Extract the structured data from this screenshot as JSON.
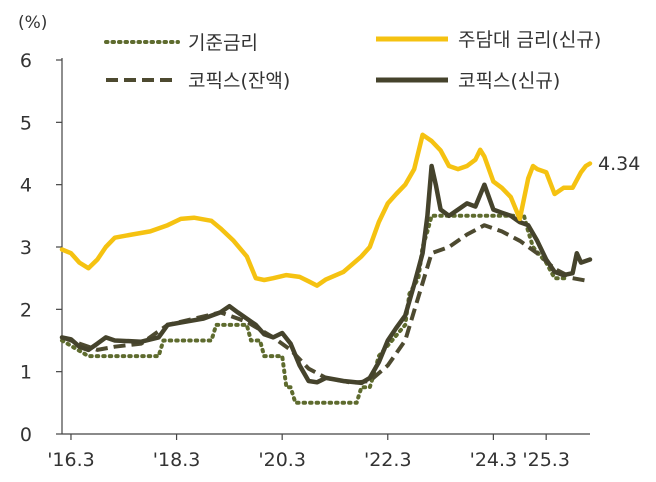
{
  "chart_data": {
    "type": "line",
    "y_unit": "(%)",
    "ylim": [
      0,
      6
    ],
    "y_ticks": [
      "0",
      "1",
      "2",
      "3",
      "4",
      "5",
      "6"
    ],
    "x_ticks": [
      {
        "label": "'16.3",
        "t": 2016.17
      },
      {
        "label": "'18.3",
        "t": 2018.17
      },
      {
        "label": "'20.3",
        "t": 2020.17
      },
      {
        "label": "'22.3",
        "t": 2022.17
      },
      {
        "label": "'24.3",
        "t": 2024.17
      },
      {
        "label": "'25.3",
        "t": 2025.17
      }
    ],
    "xlim": [
      2016.0,
      2025.67
    ],
    "end_label": "4.34",
    "grid": false,
    "legend": "top",
    "colors": {
      "base": "#5e6b2e",
      "mortgage": "#f5c211",
      "cofix_bal": "#4d4a30",
      "cofix_new": "#45432c"
    },
    "series": [
      {
        "name": "기준금리",
        "key": "base",
        "style": "dotted",
        "points": [
          [
            2016.0,
            1.5
          ],
          [
            2016.5,
            1.25
          ],
          [
            2017.83,
            1.25
          ],
          [
            2017.92,
            1.5
          ],
          [
            2018.83,
            1.5
          ],
          [
            2018.92,
            1.75
          ],
          [
            2019.5,
            1.75
          ],
          [
            2019.58,
            1.5
          ],
          [
            2019.75,
            1.5
          ],
          [
            2019.83,
            1.25
          ],
          [
            2020.17,
            1.25
          ],
          [
            2020.25,
            0.75
          ],
          [
            2020.33,
            0.75
          ],
          [
            2020.42,
            0.5
          ],
          [
            2021.58,
            0.5
          ],
          [
            2021.67,
            0.75
          ],
          [
            2021.83,
            0.75
          ],
          [
            2021.92,
            1.0
          ],
          [
            2022.0,
            1.25
          ],
          [
            2022.25,
            1.5
          ],
          [
            2022.5,
            1.75
          ],
          [
            2022.58,
            2.25
          ],
          [
            2022.75,
            2.5
          ],
          [
            2022.83,
            3.0
          ],
          [
            2022.92,
            3.25
          ],
          [
            2023.0,
            3.5
          ],
          [
            2024.75,
            3.5
          ],
          [
            2024.83,
            3.25
          ],
          [
            2024.92,
            3.0
          ],
          [
            2025.17,
            2.75
          ],
          [
            2025.33,
            2.5
          ],
          [
            2025.58,
            2.5
          ]
        ]
      },
      {
        "name": "주담대 금리(신규)",
        "key": "mortgage",
        "style": "solid",
        "points": [
          [
            2016.0,
            2.96
          ],
          [
            2016.17,
            2.9
          ],
          [
            2016.33,
            2.75
          ],
          [
            2016.5,
            2.66
          ],
          [
            2016.67,
            2.8
          ],
          [
            2016.83,
            3.0
          ],
          [
            2017.0,
            3.15
          ],
          [
            2017.33,
            3.2
          ],
          [
            2017.67,
            3.25
          ],
          [
            2018.0,
            3.35
          ],
          [
            2018.25,
            3.45
          ],
          [
            2018.5,
            3.47
          ],
          [
            2018.83,
            3.42
          ],
          [
            2019.0,
            3.3
          ],
          [
            2019.25,
            3.1
          ],
          [
            2019.5,
            2.85
          ],
          [
            2019.67,
            2.5
          ],
          [
            2019.83,
            2.47
          ],
          [
            2020.0,
            2.5
          ],
          [
            2020.25,
            2.55
          ],
          [
            2020.5,
            2.52
          ],
          [
            2020.67,
            2.45
          ],
          [
            2020.83,
            2.38
          ],
          [
            2021.0,
            2.48
          ],
          [
            2021.33,
            2.6
          ],
          [
            2021.67,
            2.85
          ],
          [
            2021.83,
            3.0
          ],
          [
            2022.0,
            3.4
          ],
          [
            2022.17,
            3.7
          ],
          [
            2022.33,
            3.85
          ],
          [
            2022.5,
            4.0
          ],
          [
            2022.67,
            4.25
          ],
          [
            2022.83,
            4.8
          ],
          [
            2023.0,
            4.7
          ],
          [
            2023.17,
            4.55
          ],
          [
            2023.33,
            4.3
          ],
          [
            2023.5,
            4.25
          ],
          [
            2023.67,
            4.3
          ],
          [
            2023.83,
            4.4
          ],
          [
            2023.92,
            4.56
          ],
          [
            2024.0,
            4.45
          ],
          [
            2024.17,
            4.05
          ],
          [
            2024.33,
            3.95
          ],
          [
            2024.5,
            3.8
          ],
          [
            2024.67,
            3.45
          ],
          [
            2024.83,
            4.1
          ],
          [
            2024.92,
            4.3
          ],
          [
            2025.0,
            4.25
          ],
          [
            2025.17,
            4.2
          ],
          [
            2025.33,
            3.85
          ],
          [
            2025.5,
            3.95
          ],
          [
            2025.67,
            3.95
          ],
          [
            2025.83,
            4.2
          ],
          [
            2025.92,
            4.3
          ],
          [
            2026.0,
            4.34
          ]
        ]
      },
      {
        "name": "코픽스(잔액)",
        "key": "cofix_bal",
        "style": "dashed",
        "points": [
          [
            2016.0,
            1.55
          ],
          [
            2016.33,
            1.45
          ],
          [
            2016.67,
            1.35
          ],
          [
            2017.0,
            1.4
          ],
          [
            2017.5,
            1.45
          ],
          [
            2018.0,
            1.75
          ],
          [
            2018.5,
            1.85
          ],
          [
            2019.0,
            1.95
          ],
          [
            2019.5,
            1.8
          ],
          [
            2020.0,
            1.55
          ],
          [
            2020.33,
            1.35
          ],
          [
            2020.67,
            1.05
          ],
          [
            2021.0,
            0.9
          ],
          [
            2021.5,
            0.82
          ],
          [
            2021.83,
            0.85
          ],
          [
            2022.17,
            1.1
          ],
          [
            2022.5,
            1.5
          ],
          [
            2022.75,
            2.2
          ],
          [
            2023.0,
            2.9
          ],
          [
            2023.33,
            3.0
          ],
          [
            2023.67,
            3.2
          ],
          [
            2024.0,
            3.35
          ],
          [
            2024.33,
            3.25
          ],
          [
            2024.67,
            3.1
          ],
          [
            2025.0,
            2.9
          ],
          [
            2025.33,
            2.65
          ],
          [
            2025.67,
            2.5
          ],
          [
            2026.0,
            2.45
          ]
        ]
      },
      {
        "name": "코픽스(신규)",
        "key": "cofix_new",
        "style": "solid",
        "points": [
          [
            2016.0,
            1.55
          ],
          [
            2016.17,
            1.52
          ],
          [
            2016.33,
            1.4
          ],
          [
            2016.5,
            1.35
          ],
          [
            2016.67,
            1.45
          ],
          [
            2016.83,
            1.55
          ],
          [
            2017.0,
            1.5
          ],
          [
            2017.5,
            1.48
          ],
          [
            2017.83,
            1.55
          ],
          [
            2018.0,
            1.75
          ],
          [
            2018.33,
            1.8
          ],
          [
            2018.67,
            1.85
          ],
          [
            2019.0,
            1.95
          ],
          [
            2019.17,
            2.05
          ],
          [
            2019.33,
            1.95
          ],
          [
            2019.67,
            1.75
          ],
          [
            2019.83,
            1.6
          ],
          [
            2020.0,
            1.55
          ],
          [
            2020.17,
            1.62
          ],
          [
            2020.33,
            1.45
          ],
          [
            2020.5,
            1.1
          ],
          [
            2020.67,
            0.85
          ],
          [
            2020.83,
            0.83
          ],
          [
            2021.0,
            0.9
          ],
          [
            2021.33,
            0.85
          ],
          [
            2021.67,
            0.82
          ],
          [
            2021.83,
            0.9
          ],
          [
            2022.0,
            1.15
          ],
          [
            2022.17,
            1.5
          ],
          [
            2022.33,
            1.7
          ],
          [
            2022.5,
            1.9
          ],
          [
            2022.67,
            2.4
          ],
          [
            2022.83,
            2.9
          ],
          [
            2022.92,
            3.5
          ],
          [
            2023.0,
            4.3
          ],
          [
            2023.08,
            4.0
          ],
          [
            2023.17,
            3.6
          ],
          [
            2023.33,
            3.5
          ],
          [
            2023.5,
            3.6
          ],
          [
            2023.67,
            3.7
          ],
          [
            2023.83,
            3.65
          ],
          [
            2024.0,
            4.0
          ],
          [
            2024.17,
            3.6
          ],
          [
            2024.33,
            3.55
          ],
          [
            2024.5,
            3.5
          ],
          [
            2024.67,
            3.4
          ],
          [
            2024.83,
            3.35
          ],
          [
            2025.0,
            3.1
          ],
          [
            2025.17,
            2.8
          ],
          [
            2025.33,
            2.6
          ],
          [
            2025.5,
            2.55
          ],
          [
            2025.67,
            2.58
          ],
          [
            2025.75,
            2.9
          ],
          [
            2025.83,
            2.75
          ],
          [
            2026.0,
            2.8
          ]
        ]
      }
    ]
  }
}
